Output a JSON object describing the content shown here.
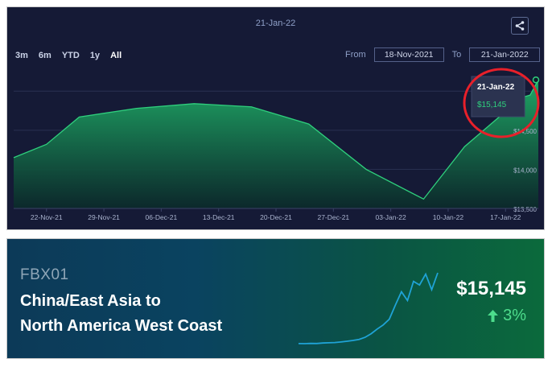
{
  "chart_panel": {
    "header_date": "21-Jan-22",
    "range_buttons": [
      "3m",
      "6m",
      "YTD",
      "1y",
      "All"
    ],
    "active_range": "All",
    "from_label": "From",
    "from_value": "18-Nov-2021",
    "to_label": "To",
    "to_value": "21-Jan-2022",
    "tooltip": {
      "date": "21-Jan-22",
      "value": "$15,145"
    },
    "colors": {
      "background": "#151a36",
      "line": "#2fd07d",
      "highlight_circle": "#e8202a"
    }
  },
  "chart_data": {
    "type": "area",
    "x": [
      "18-Nov-21",
      "22-Nov-21",
      "26-Nov-21",
      "03-Dec-21",
      "10-Dec-21",
      "17-Dec-21",
      "24-Dec-21",
      "31-Dec-21",
      "07-Jan-22",
      "12-Jan-22",
      "19-Jan-22",
      "20-Jan-22",
      "21-Jan-22"
    ],
    "values": [
      14150,
      14320,
      14670,
      14780,
      14840,
      14800,
      14580,
      14000,
      13620,
      14290,
      14920,
      14950,
      15145
    ],
    "x_tick_labels": [
      "22-Nov-21",
      "29-Nov-21",
      "06-Dec-21",
      "13-Dec-21",
      "20-Dec-21",
      "27-Dec-21",
      "03-Jan-22",
      "10-Jan-22",
      "17-Jan-22"
    ],
    "y_tick_labels": [
      "$13,500",
      "$14,000",
      "$14,500"
    ],
    "ylim": [
      13500,
      15250
    ],
    "grid": true
  },
  "banner": {
    "index_code": "FBX01",
    "route_line1": "China/East Asia to",
    "route_line2": "North America West Coast",
    "price": "$15,145",
    "change": "3%",
    "change_direction_icon": "arrow-up-icon",
    "sparkline": [
      1500,
      1480,
      1520,
      1510,
      1600,
      1650,
      1700,
      1800,
      1950,
      2100,
      2300,
      2700,
      3400,
      4300,
      5100,
      6200,
      8900,
      11500,
      9800,
      13500,
      12800,
      14900,
      11900,
      15145
    ]
  }
}
